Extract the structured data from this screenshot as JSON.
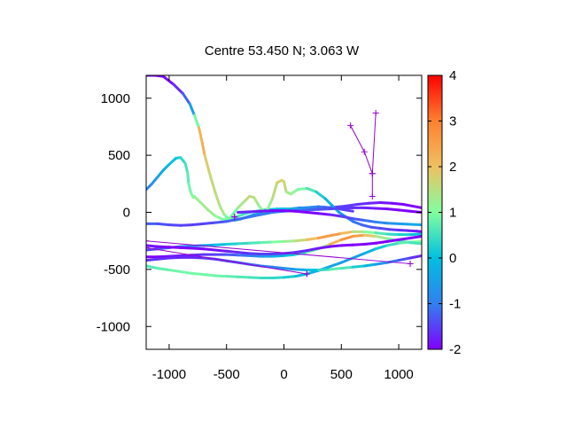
{
  "chart_data": {
    "type": "line",
    "title": "Centre 53.450 N; 3.063  W",
    "xlabel": "",
    "ylabel": "",
    "xlim": [
      -1200,
      1200
    ],
    "ylim": [
      -1200,
      1200
    ],
    "xticks": [
      -1000,
      -500,
      0,
      500,
      1000
    ],
    "yticks": [
      -1000,
      -500,
      0,
      500,
      1000
    ],
    "grid": false,
    "colorbar": {
      "range": [
        -2,
        4
      ],
      "ticks": [
        -2,
        -1,
        0,
        1,
        2,
        3,
        4
      ],
      "colors": [
        "#8000ff",
        "#3080f0",
        "#00c0e0",
        "#80ffa0",
        "#f0c060",
        "#ff8030",
        "#ff0000"
      ]
    },
    "tracks": [
      {
        "x": [
          -1200,
          -1120,
          -1050,
          -960,
          -880,
          -820,
          -780,
          -740,
          -710,
          -690,
          -650,
          -600,
          -560,
          -520,
          -500,
          -470,
          -430,
          -380,
          -320,
          -260,
          -200,
          -140,
          -80,
          -20,
          60,
          140,
          240,
          340,
          440,
          540,
          640,
          740,
          840,
          940,
          1040,
          1120,
          1200
        ],
        "y": [
          1200,
          1200,
          1190,
          1120,
          1040,
          950,
          850,
          740,
          600,
          500,
          350,
          180,
          60,
          -20,
          -40,
          -60,
          -70,
          -60,
          -40,
          -20,
          -10,
          0,
          10,
          20,
          30,
          40,
          40,
          40,
          45,
          55,
          70,
          80,
          85,
          80,
          70,
          55,
          40
        ],
        "v": [
          -2,
          -2,
          -2,
          -1.8,
          -1.5,
          -1,
          0,
          1.8,
          2.6,
          2,
          1.6,
          1.6,
          1.5,
          1.2,
          1.0,
          0.8,
          0.6,
          0.2,
          -0.2,
          -0.5,
          -0.6,
          -0.5,
          -0.3,
          -0.6,
          -1,
          -1.2,
          -1.5,
          -1.6,
          -1.5,
          -1.5,
          -1.6,
          -1.7,
          -1.8,
          -1.9,
          -2,
          -2,
          -2
        ]
      },
      {
        "x": [
          -1200,
          -1150,
          -1100,
          -1050,
          -1000,
          -940,
          -900,
          -860,
          -840,
          -830,
          -810,
          -790,
          -780,
          -760,
          -720,
          -660,
          -600,
          -540,
          -480,
          -420,
          -360,
          -300,
          -240,
          -180,
          -120,
          -60,
          0,
          60,
          120,
          180,
          240,
          300,
          360,
          420,
          480,
          540,
          600
        ],
        "y": [
          200,
          250,
          310,
          370,
          420,
          475,
          480,
          430,
          350,
          250,
          170,
          130,
          140,
          120,
          80,
          20,
          -30,
          -60,
          -60,
          -40,
          -20,
          0,
          10,
          20,
          25,
          30,
          30,
          30,
          35,
          40,
          45,
          50,
          45,
          40,
          30,
          20,
          10
        ],
        "v": [
          -1,
          -0.8,
          -0.5,
          -0.3,
          -0.1,
          0.1,
          0.2,
          0.5,
          0.6,
          0.8,
          0.9,
          1.0,
          1.1,
          1.2,
          1.3,
          1.3,
          1.2,
          1.0,
          0.9,
          0.7,
          0.6,
          0.5,
          0.4,
          0.3,
          0.2,
          0.1,
          0,
          -0.2,
          -0.5,
          -0.7,
          -0.9,
          -1,
          -1.2,
          -1.3,
          -1.4,
          -1.5,
          -1.6
        ]
      },
      {
        "x": [
          -480,
          -400,
          -330,
          -300,
          -260,
          -220,
          -160,
          -100,
          -60,
          -20,
          0,
          20,
          60,
          120,
          200,
          280,
          360,
          420,
          480,
          540,
          600,
          680,
          760,
          840,
          920,
          1000,
          1080,
          1160,
          1200
        ],
        "y": [
          -60,
          40,
          110,
          140,
          130,
          60,
          -10,
          120,
          260,
          280,
          270,
          180,
          160,
          200,
          210,
          180,
          120,
          60,
          0,
          -40,
          -80,
          -110,
          -130,
          -140,
          -150,
          -155,
          -160,
          -165,
          -170
        ],
        "v": [
          0.6,
          1.2,
          1.5,
          1.6,
          1.5,
          1.3,
          1.0,
          1.4,
          1.7,
          1.8,
          1.8,
          1.4,
          1.2,
          1.1,
          0.8,
          0.4,
          0.0,
          -0.3,
          -0.5,
          -0.8,
          -1,
          -1.2,
          -1.3,
          -1.4,
          -1.5,
          -1.6,
          -1.7,
          -1.8,
          -1.9
        ]
      },
      {
        "x": [
          -1200,
          -1100,
          -1000,
          -900,
          -800,
          -700,
          -600,
          -500,
          -400,
          -300,
          -200,
          -100,
          0,
          100,
          200,
          300,
          400,
          500,
          600,
          700,
          800,
          900,
          1000,
          1100,
          1200
        ],
        "y": [
          -100,
          -100,
          -110,
          -115,
          -110,
          -100,
          -90,
          -80,
          -60,
          -40,
          -20,
          0,
          10,
          15,
          20,
          25,
          30,
          35,
          40,
          40,
          35,
          30,
          20,
          10,
          0
        ],
        "v": [
          -1.2,
          -1.3,
          -1.4,
          -1.5,
          -1.5,
          -1.5,
          -1.4,
          -1.3,
          -1.2,
          -1.1,
          -1.0,
          -1.0,
          -1.0,
          -1.1,
          -1.2,
          -1.3,
          -1.4,
          -1.5,
          -1.6,
          -1.7,
          -1.8,
          -1.9,
          -2,
          -2,
          -2
        ]
      },
      {
        "x": [
          -1200,
          -1100,
          -1000,
          -900,
          -800,
          -700,
          -600,
          -500,
          -400,
          -300,
          -200,
          -100,
          0,
          100,
          200,
          300,
          400,
          500,
          600,
          700,
          800,
          900,
          1000,
          1100,
          1200
        ],
        "y": [
          -330,
          -320,
          -310,
          -300,
          -295,
          -290,
          -285,
          -280,
          -275,
          -270,
          -265,
          -260,
          -255,
          -250,
          -240,
          -225,
          -205,
          -185,
          -170,
          -170,
          -180,
          -190,
          -195,
          -195,
          -190
        ],
        "v": [
          -1.6,
          -1.4,
          -1.2,
          -1.0,
          -0.8,
          -0.5,
          -0.2,
          0.1,
          0.3,
          0.5,
          0.7,
          0.9,
          1.1,
          1.4,
          1.8,
          2.3,
          2.8,
          2.4,
          1.8,
          1.2,
          0.8,
          0.5,
          0.3,
          0.1,
          0
        ]
      },
      {
        "x": [
          -1200,
          -1100,
          -1000,
          -900,
          -800,
          -700,
          -600,
          -500,
          -400,
          -300,
          -200,
          -100,
          0,
          100,
          200,
          300,
          400,
          500,
          600,
          700,
          800,
          900,
          1000,
          1100,
          1200
        ],
        "y": [
          -470,
          -490,
          -505,
          -520,
          -535,
          -545,
          -555,
          -560,
          -565,
          -570,
          -575,
          -575,
          -570,
          -560,
          -540,
          -510,
          -475,
          -440,
          -400,
          -360,
          -320,
          -290,
          -270,
          -260,
          -255
        ],
        "v": [
          0.6,
          0.7,
          0.8,
          0.9,
          0.9,
          0.9,
          0.9,
          0.8,
          0.7,
          0.6,
          0.5,
          0.4,
          0.3,
          0.1,
          -0.1,
          -0.3,
          -0.4,
          -0.5,
          -0.6,
          -0.4,
          0.0,
          0.3,
          0.6,
          0.9,
          1.1
        ]
      },
      {
        "x": [
          -1200,
          -1100,
          -1000,
          -900,
          -800,
          -700,
          -600,
          -500,
          -400,
          -300,
          -200,
          -100,
          0,
          100,
          200,
          300,
          400,
          500,
          600,
          700,
          800,
          900,
          1000,
          1100,
          1200
        ],
        "y": [
          -390,
          -390,
          -385,
          -380,
          -375,
          -370,
          -370,
          -370,
          -375,
          -380,
          -385,
          -385,
          -380,
          -370,
          -350,
          -320,
          -280,
          -240,
          -210,
          -200,
          -210,
          -230,
          -250,
          -265,
          -275
        ],
        "v": [
          -2,
          -2,
          -1.9,
          -1.8,
          -1.7,
          -1.6,
          -1.5,
          -1.4,
          -1.2,
          -1.0,
          -0.7,
          -0.4,
          -0.1,
          0.2,
          0.6,
          1.1,
          1.8,
          2.5,
          2.9,
          2.2,
          1.6,
          1.1,
          0.8,
          0.6,
          0.5
        ]
      },
      {
        "x": [
          -1200,
          -1100,
          -1000,
          -900,
          -800,
          -700,
          -600,
          -500,
          -400,
          -300,
          -200,
          -100,
          0,
          100,
          200,
          300,
          400,
          500,
          600,
          700,
          800,
          900,
          1000,
          1100,
          1200
        ],
        "y": [
          -420,
          -410,
          -400,
          -395,
          -395,
          -400,
          -410,
          -425,
          -440,
          -455,
          -470,
          -480,
          -490,
          -500,
          -505,
          -505,
          -500,
          -490,
          -480,
          -470,
          -455,
          -440,
          -420,
          -400,
          -380
        ],
        "v": [
          -1.6,
          -1.6,
          -1.7,
          -1.7,
          -1.7,
          -1.6,
          -1.5,
          -1.4,
          -1.3,
          -1.2,
          -1.1,
          -1.0,
          -0.8,
          -0.5,
          -0.2,
          0.2,
          0.6,
          0.8,
          0.4,
          0.0,
          -0.4,
          -0.8,
          -1.2,
          -1.5,
          -1.8
        ]
      },
      {
        "x": [
          -1200,
          -1100,
          -1000,
          -900,
          -800,
          -700,
          -600,
          -500,
          -400,
          -300,
          -200,
          -100,
          0,
          100,
          200,
          300,
          400,
          500,
          600,
          700,
          800,
          900,
          1000,
          1100,
          1200
        ],
        "y": [
          -290,
          -300,
          -305,
          -310,
          -315,
          -320,
          -330,
          -340,
          -350,
          -360,
          -365,
          -365,
          -360,
          -350,
          -335,
          -315,
          -300,
          -290,
          -285,
          -280,
          -270,
          -255,
          -240,
          -225,
          -210
        ],
        "v": [
          -1.8,
          -1.9,
          -2,
          -2,
          -2,
          -2,
          -1.9,
          -1.8,
          -1.7,
          -1.6,
          -1.5,
          -1.5,
          -1.5,
          -1.6,
          -1.7,
          -1.8,
          -1.9,
          -2,
          -2,
          -2,
          -2,
          -2,
          -2,
          -2,
          -2
        ]
      },
      {
        "x": [
          -400,
          -300,
          -200,
          -100,
          0,
          100,
          200,
          300,
          400,
          500,
          600,
          700,
          800,
          900,
          1000,
          1100,
          1200
        ],
        "y": [
          0,
          5,
          10,
          15,
          15,
          10,
          0,
          -10,
          -20,
          -35,
          -55,
          -70,
          -85,
          -95,
          -100,
          -105,
          -110
        ],
        "v": [
          -1.7,
          -1.7,
          -1.8,
          -1.9,
          -2,
          -2,
          -2,
          -2,
          -1.8,
          -1.6,
          -1.4,
          -1.2,
          -1.0,
          -0.8,
          -0.6,
          -0.4,
          -0.3
        ]
      }
    ],
    "markers": [
      {
        "x": [
          800,
          770,
          700,
          580
        ],
        "y": [
          870,
          340,
          530,
          760
        ]
      },
      {
        "x": [
          770,
          770
        ],
        "y": [
          340,
          140
        ]
      },
      {
        "x": [
          -430,
          -430
        ],
        "y": [
          -40,
          -40
        ]
      },
      {
        "x": [
          -1200,
          1100
        ],
        "y": [
          -250,
          -450
        ]
      },
      {
        "x": [
          -1200,
          200
        ],
        "y": [
          -310,
          -540
        ]
      },
      {
        "x": [
          200,
          200
        ],
        "y": [
          -540,
          -540
        ]
      },
      {
        "x": [
          1100,
          1100
        ],
        "y": [
          -450,
          -450
        ]
      }
    ]
  }
}
